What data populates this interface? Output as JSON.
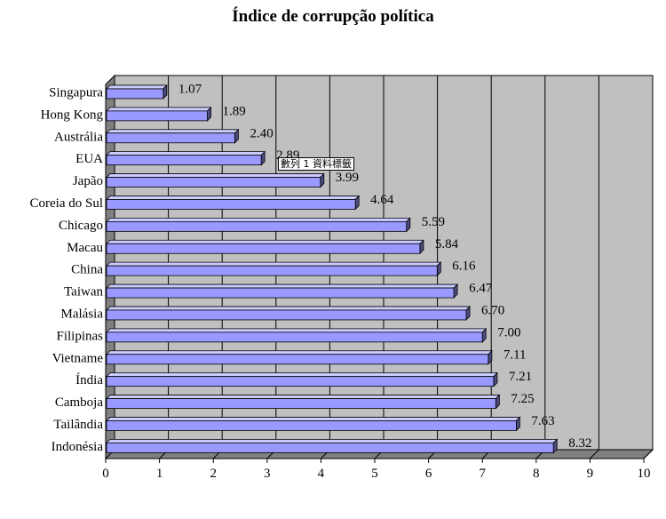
{
  "chart_data": {
    "type": "bar",
    "orientation": "horizontal",
    "title": "Índice de corrupção política",
    "categories": [
      "Singapura",
      "Hong Kong",
      "Austrália",
      "EUA",
      "Japão",
      "Coreia do Sul",
      "Chicago",
      "Macau",
      "China",
      "Taiwan",
      "Malásia",
      "Filipinas",
      "Vietname",
      "Índia",
      "Camboja",
      "Tailândia",
      "Indonésia"
    ],
    "values": [
      1.07,
      1.89,
      2.4,
      2.89,
      3.99,
      4.64,
      5.59,
      5.84,
      6.16,
      6.47,
      6.7,
      7.0,
      7.11,
      7.21,
      7.25,
      7.63,
      8.32
    ],
    "value_labels": [
      "1.07",
      "1.89",
      "2.40",
      "2.89",
      "3.99",
      "4.64",
      "5.59",
      "5.84",
      "6.16",
      "6.47",
      "6.70",
      "7.00",
      "7.11",
      "7.21",
      "7.25",
      "7.63",
      "8.32"
    ],
    "xlim": [
      0,
      10
    ],
    "xticks": [
      "0",
      "1",
      "2",
      "3",
      "4",
      "5",
      "6",
      "7",
      "8",
      "9",
      "10"
    ],
    "xlabel": "",
    "ylabel": "",
    "grid": true,
    "legend": "none",
    "bar_color": "#9999ff",
    "background_color": "#c0c0c0"
  },
  "tooltip": {
    "text": "數列 1 資料標籤"
  }
}
